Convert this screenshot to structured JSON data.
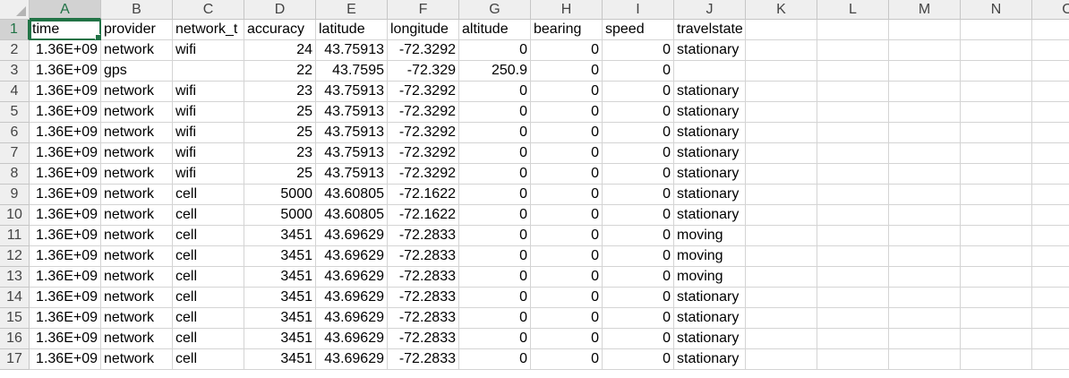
{
  "columns": [
    "A",
    "B",
    "C",
    "D",
    "E",
    "F",
    "G",
    "H",
    "I",
    "J",
    "K",
    "L",
    "M",
    "N",
    "O"
  ],
  "column_kinds": [
    "num",
    "text",
    "text",
    "num",
    "num",
    "num",
    "num",
    "num",
    "num",
    "text",
    "text",
    "text",
    "text",
    "text",
    "text"
  ],
  "selected_column": "A",
  "selected_row": 1,
  "rows": [
    [
      "time",
      "provider",
      "network_t",
      "accuracy",
      "latitude",
      "longitude",
      "altitude",
      "bearing",
      "speed",
      "travelstate",
      "",
      "",
      "",
      "",
      ""
    ],
    [
      "1.36E+09",
      "network",
      "wifi",
      "24",
      "43.75913",
      "-72.3292",
      "0",
      "0",
      "0",
      "stationary",
      "",
      "",
      "",
      "",
      ""
    ],
    [
      "1.36E+09",
      "gps",
      "",
      "22",
      "43.7595",
      "-72.329",
      "250.9",
      "0",
      "0",
      "",
      "",
      "",
      "",
      "",
      ""
    ],
    [
      "1.36E+09",
      "network",
      "wifi",
      "23",
      "43.75913",
      "-72.3292",
      "0",
      "0",
      "0",
      "stationary",
      "",
      "",
      "",
      "",
      ""
    ],
    [
      "1.36E+09",
      "network",
      "wifi",
      "25",
      "43.75913",
      "-72.3292",
      "0",
      "0",
      "0",
      "stationary",
      "",
      "",
      "",
      "",
      ""
    ],
    [
      "1.36E+09",
      "network",
      "wifi",
      "25",
      "43.75913",
      "-72.3292",
      "0",
      "0",
      "0",
      "stationary",
      "",
      "",
      "",
      "",
      ""
    ],
    [
      "1.36E+09",
      "network",
      "wifi",
      "23",
      "43.75913",
      "-72.3292",
      "0",
      "0",
      "0",
      "stationary",
      "",
      "",
      "",
      "",
      ""
    ],
    [
      "1.36E+09",
      "network",
      "wifi",
      "25",
      "43.75913",
      "-72.3292",
      "0",
      "0",
      "0",
      "stationary",
      "",
      "",
      "",
      "",
      ""
    ],
    [
      "1.36E+09",
      "network",
      "cell",
      "5000",
      "43.60805",
      "-72.1622",
      "0",
      "0",
      "0",
      "stationary",
      "",
      "",
      "",
      "",
      ""
    ],
    [
      "1.36E+09",
      "network",
      "cell",
      "5000",
      "43.60805",
      "-72.1622",
      "0",
      "0",
      "0",
      "stationary",
      "",
      "",
      "",
      "",
      ""
    ],
    [
      "1.36E+09",
      "network",
      "cell",
      "3451",
      "43.69629",
      "-72.2833",
      "0",
      "0",
      "0",
      "moving",
      "",
      "",
      "",
      "",
      ""
    ],
    [
      "1.36E+09",
      "network",
      "cell",
      "3451",
      "43.69629",
      "-72.2833",
      "0",
      "0",
      "0",
      "moving",
      "",
      "",
      "",
      "",
      ""
    ],
    [
      "1.36E+09",
      "network",
      "cell",
      "3451",
      "43.69629",
      "-72.2833",
      "0",
      "0",
      "0",
      "moving",
      "",
      "",
      "",
      "",
      ""
    ],
    [
      "1.36E+09",
      "network",
      "cell",
      "3451",
      "43.69629",
      "-72.2833",
      "0",
      "0",
      "0",
      "stationary",
      "",
      "",
      "",
      "",
      ""
    ],
    [
      "1.36E+09",
      "network",
      "cell",
      "3451",
      "43.69629",
      "-72.2833",
      "0",
      "0",
      "0",
      "stationary",
      "",
      "",
      "",
      "",
      ""
    ],
    [
      "1.36E+09",
      "network",
      "cell",
      "3451",
      "43.69629",
      "-72.2833",
      "0",
      "0",
      "0",
      "stationary",
      "",
      "",
      "",
      "",
      ""
    ],
    [
      "1.36E+09",
      "network",
      "cell",
      "3451",
      "43.69629",
      "-72.2833",
      "0",
      "0",
      "0",
      "stationary",
      "",
      "",
      "",
      "",
      ""
    ]
  ]
}
